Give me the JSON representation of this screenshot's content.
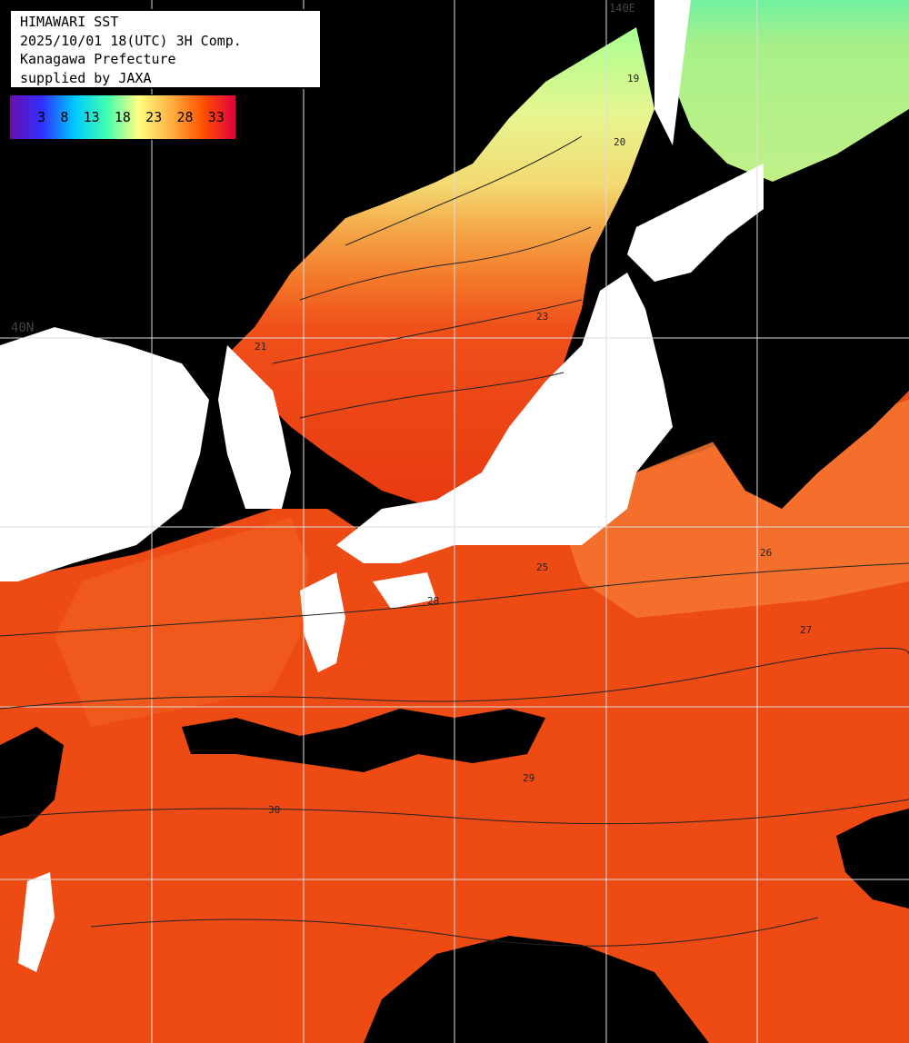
{
  "title": {
    "line1": "HIMAWARI SST",
    "line2": "2025/10/01 18(UTC) 3H Comp.",
    "line3": "Kanagawa Prefecture",
    "line4": "supplied by JAXA"
  },
  "scale": {
    "labels": [
      "3",
      "8",
      "13",
      "18",
      "23",
      "28",
      "33"
    ],
    "gradient_colors": [
      "#6a0dad",
      "#3030ff",
      "#00c8ff",
      "#40ffb0",
      "#ffff80",
      "#ffb040",
      "#ff5000",
      "#e00040"
    ]
  },
  "grid": {
    "lat_label": "40N",
    "lon_label": "140E"
  },
  "colors": {
    "land": "#000000",
    "cloud": "#ffffff",
    "grid": "#dddddd"
  },
  "contours": [
    {
      "label": "19",
      "shown": true
    },
    {
      "label": "20",
      "shown": true
    },
    {
      "label": "21",
      "shown": true
    },
    {
      "label": "23",
      "shown": true
    },
    {
      "label": "25",
      "shown": true
    },
    {
      "label": "26",
      "shown": true
    },
    {
      "label": "27",
      "shown": true
    },
    {
      "label": "28",
      "shown": true
    },
    {
      "label": "29",
      "shown": true
    },
    {
      "label": "30",
      "shown": true
    }
  ]
}
